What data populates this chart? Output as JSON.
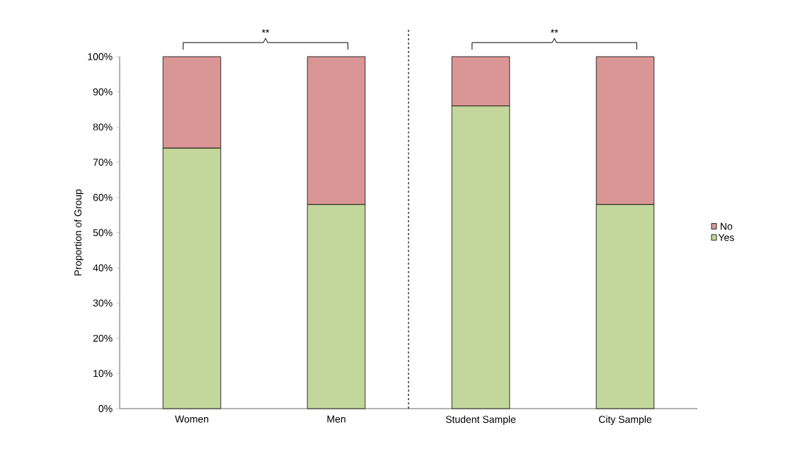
{
  "chart_data": {
    "type": "bar",
    "stacked": true,
    "ylabel": "Proportion of Group",
    "categories": [
      "Women",
      "Men",
      "Student Sample",
      "City Sample"
    ],
    "series": [
      {
        "name": "Yes",
        "color": "#c3d69b",
        "values": [
          74,
          58,
          86,
          58
        ]
      },
      {
        "name": "No",
        "color": "#d99694",
        "values": [
          26,
          42,
          14,
          42
        ]
      }
    ],
    "ylim": [
      0,
      100
    ],
    "yticks": [
      {
        "value": 0,
        "label": "0%"
      },
      {
        "value": 10,
        "label": "10%"
      },
      {
        "value": 20,
        "label": "20%"
      },
      {
        "value": 30,
        "label": "30%"
      },
      {
        "value": 40,
        "label": "40%"
      },
      {
        "value": 50,
        "label": "50%"
      },
      {
        "value": 60,
        "label": "60%"
      },
      {
        "value": 70,
        "label": "70%"
      },
      {
        "value": 80,
        "label": "80%"
      },
      {
        "value": 90,
        "label": "90%"
      },
      {
        "value": 100,
        "label": "100%"
      }
    ],
    "annotations": [
      "**",
      "**"
    ],
    "grid": false,
    "legend": "right"
  }
}
